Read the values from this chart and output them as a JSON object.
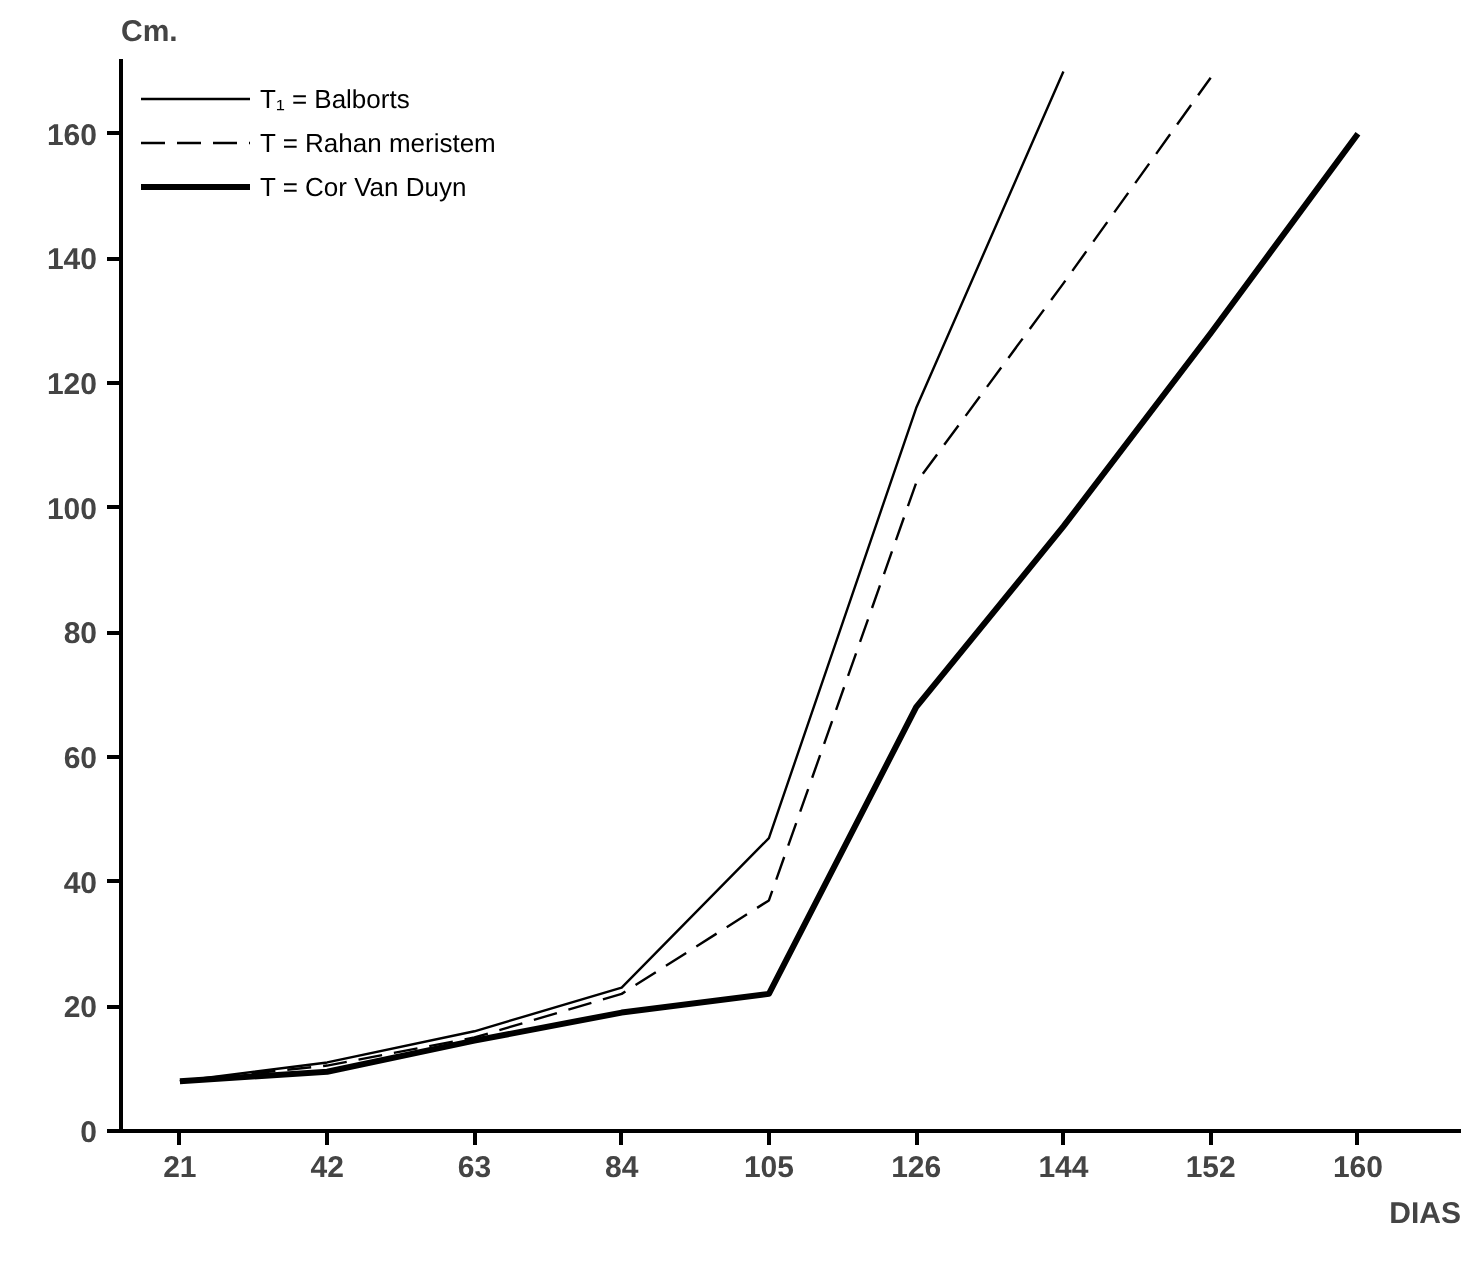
{
  "chart_data": {
    "type": "line",
    "xlabel": "DIAS",
    "ylabel": "Cm.",
    "categories": [
      "21",
      "42",
      "63",
      "84",
      "105",
      "126",
      "144",
      "152",
      "160"
    ],
    "ylim": [
      0,
      172
    ],
    "yticks": [
      0,
      20,
      40,
      60,
      80,
      100,
      120,
      140,
      160
    ],
    "grid": false,
    "legend": "top left",
    "series": [
      {
        "name": "T₁ = Balborts",
        "color": "#000000",
        "line_style": "solid",
        "values": [
          8,
          11,
          16,
          23,
          47,
          116,
          170,
          null,
          null
        ]
      },
      {
        "name": "T = Rahan meristem",
        "color": "#000000",
        "line_style": "dashed",
        "values": [
          8,
          10.5,
          15,
          22,
          37,
          104,
          136,
          169,
          null
        ]
      },
      {
        "name": "T = Cor Van Duyn",
        "color": "#000000",
        "line_style": "solid",
        "values": [
          8,
          9.5,
          14.5,
          19,
          22,
          68,
          97,
          128,
          160
        ]
      }
    ]
  }
}
